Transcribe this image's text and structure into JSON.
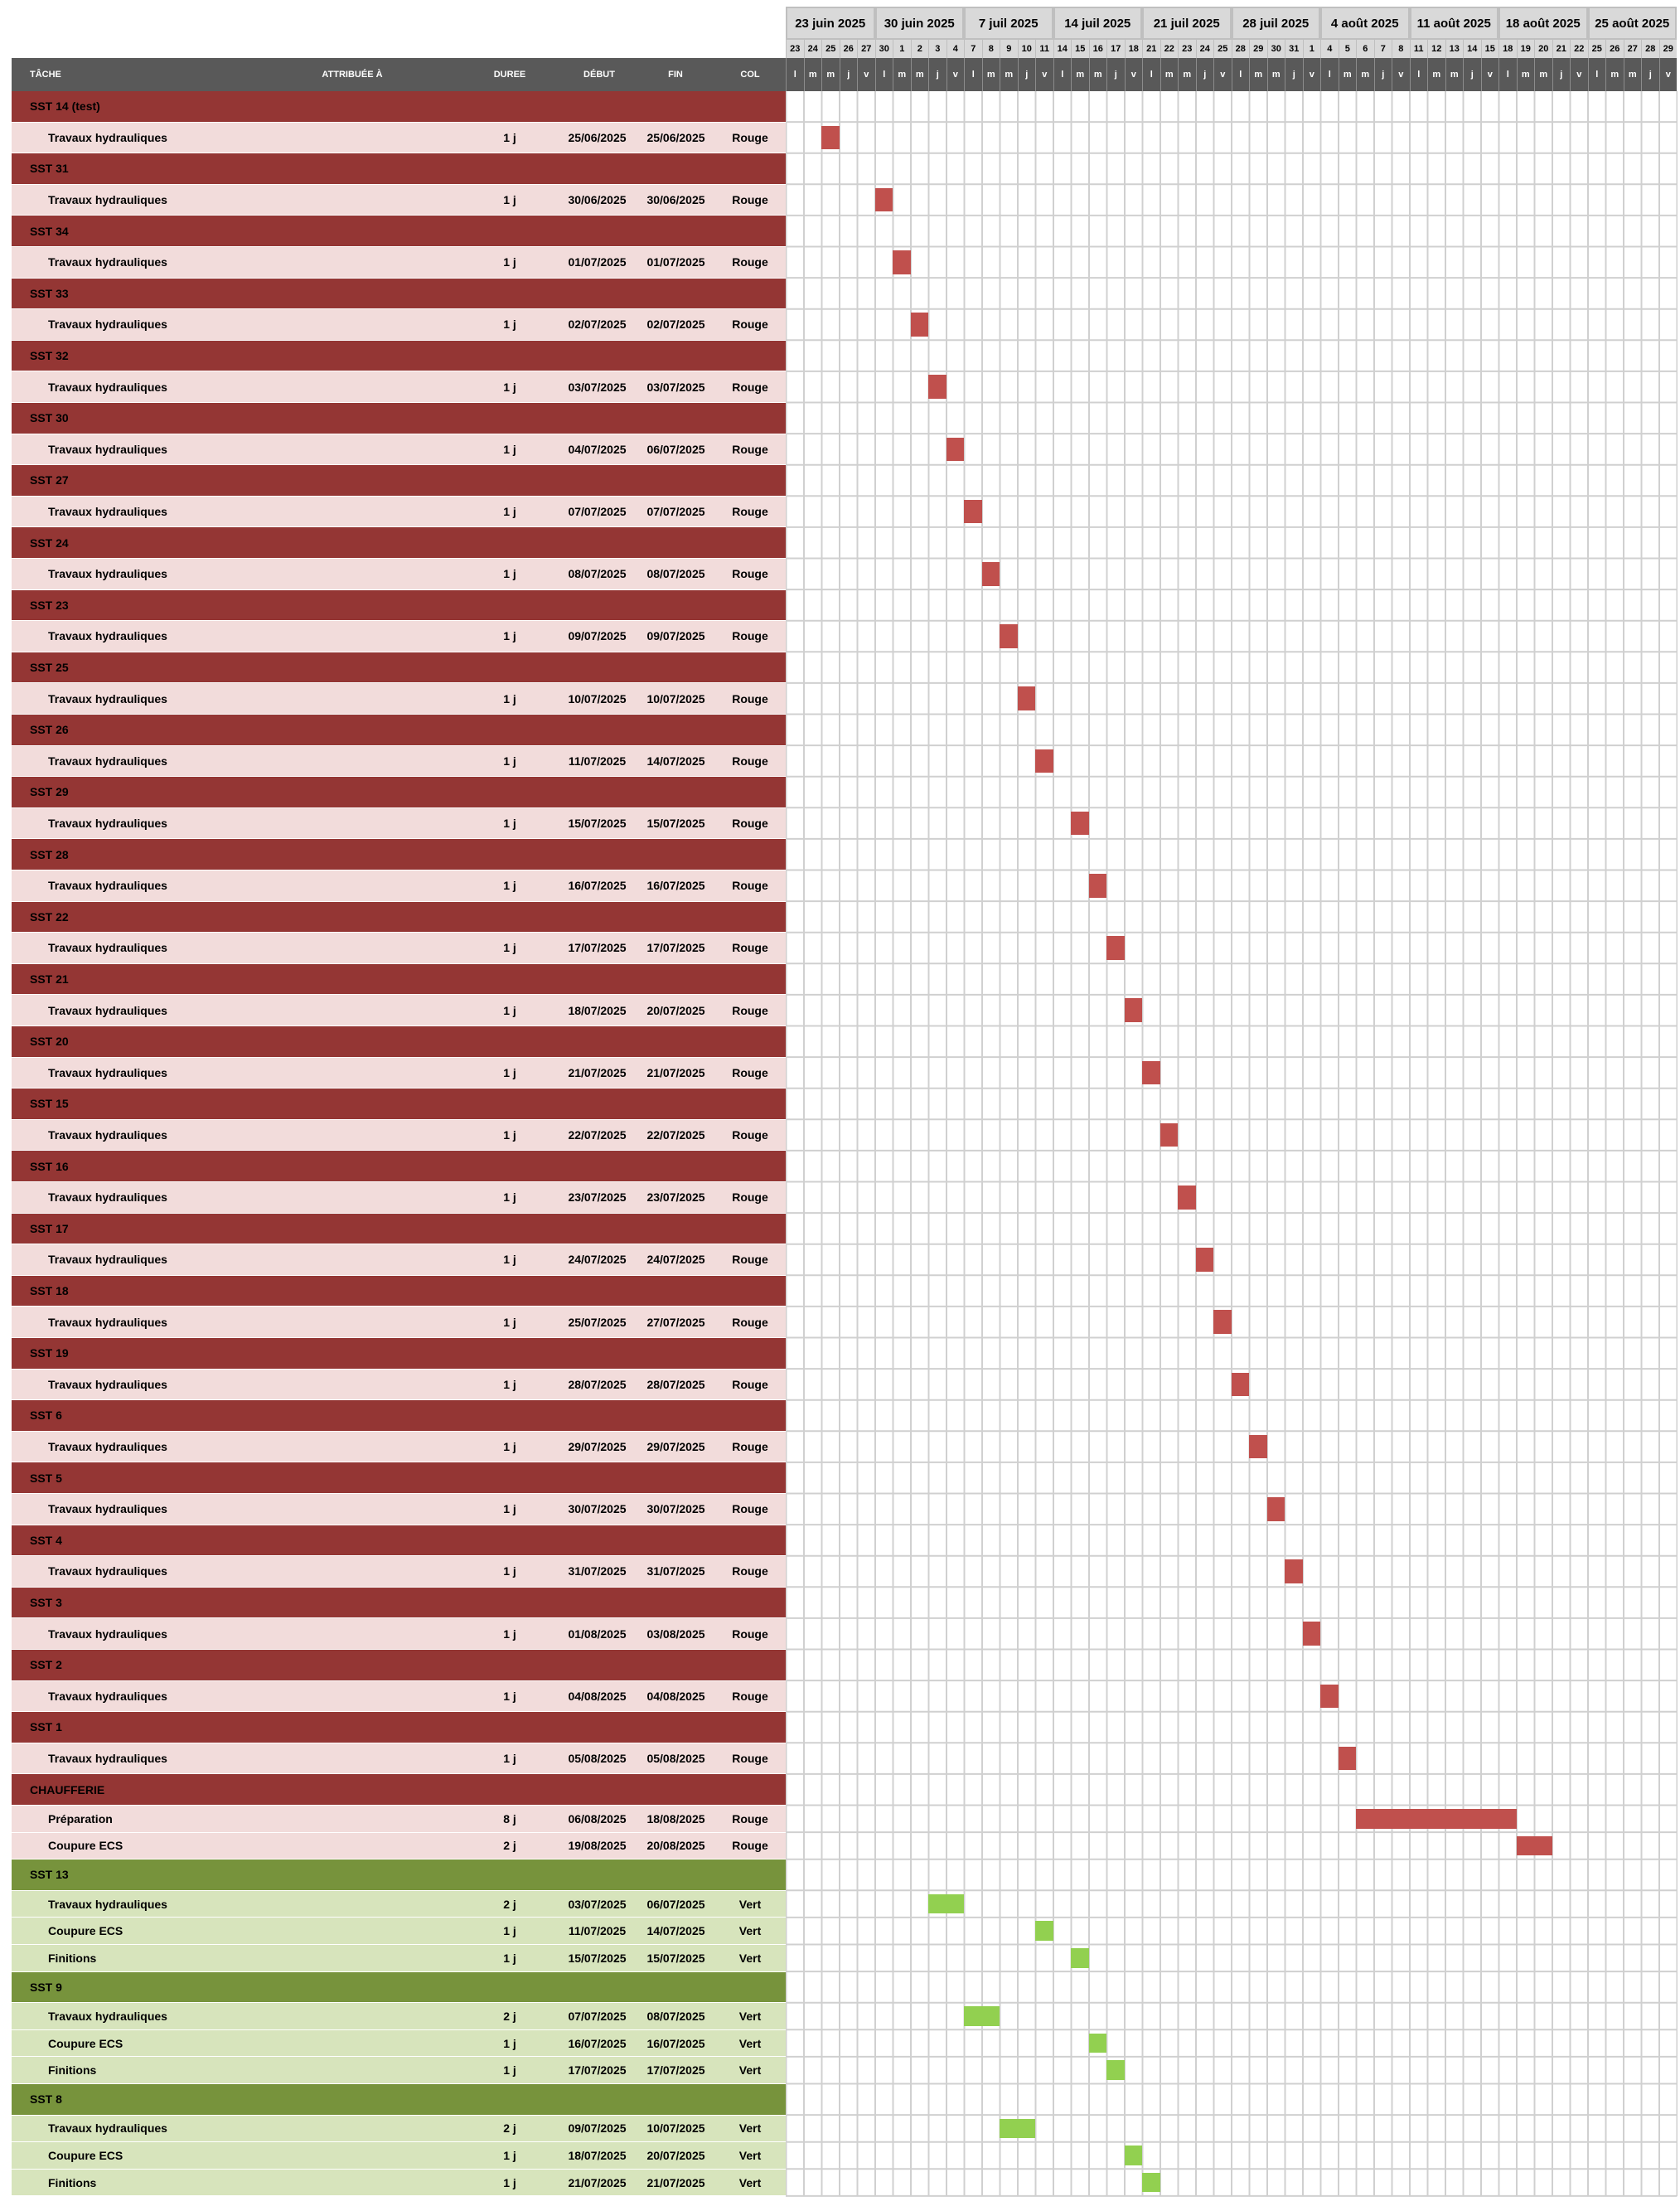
{
  "colors": {
    "group_red": "#943634",
    "group_green": "#77933c",
    "task_red": "#f2dcdb",
    "task_green": "#d7e4bc",
    "bar_red": "#c0504d",
    "bar_green": "#92d050",
    "header_dark": "#595959",
    "header_light": "#d9d9d9"
  },
  "headers": {
    "task": "TÂCHE",
    "assigned": "ATTRIBUÉE À",
    "duration": "DUREE",
    "start": "DÉBUT",
    "end": "FIN",
    "color": "COL"
  },
  "weeks": [
    "23 juin 2025",
    "30 juin 2025",
    "7 juil 2025",
    "14 juil 2025",
    "21 juil 2025",
    "28 juil 2025",
    "4 août 2025",
    "11 août 2025",
    "18 août 2025",
    "25 août 2025"
  ],
  "day_numbers": [
    "23",
    "24",
    "25",
    "26",
    "27",
    "30",
    "1",
    "2",
    "3",
    "4",
    "7",
    "8",
    "9",
    "10",
    "11",
    "14",
    "15",
    "16",
    "17",
    "18",
    "21",
    "22",
    "23",
    "24",
    "25",
    "28",
    "29",
    "30",
    "31",
    "1",
    "4",
    "5",
    "6",
    "7",
    "8",
    "11",
    "12",
    "13",
    "14",
    "15",
    "18",
    "19",
    "20",
    "21",
    "22",
    "25",
    "26",
    "27",
    "28",
    "29"
  ],
  "day_letters": [
    "l",
    "m",
    "m",
    "j",
    "v",
    "l",
    "m",
    "m",
    "j",
    "v",
    "l",
    "m",
    "m",
    "j",
    "v",
    "l",
    "m",
    "m",
    "j",
    "v",
    "l",
    "m",
    "m",
    "j",
    "v",
    "l",
    "m",
    "m",
    "j",
    "v",
    "l",
    "m",
    "m",
    "j",
    "v",
    "l",
    "m",
    "m",
    "j",
    "v",
    "l",
    "m",
    "m",
    "j",
    "v",
    "l",
    "m",
    "m",
    "j",
    "v"
  ],
  "rows": [
    {
      "kind": "group",
      "color": "red",
      "name": "SST 14 (test)"
    },
    {
      "kind": "task",
      "color": "red",
      "name": "Travaux hydrauliques",
      "duration": "1 j",
      "start": "25/06/2025",
      "end": "25/06/2025",
      "col": "Rouge",
      "bar_start": 2,
      "bar_len": 1
    },
    {
      "kind": "group",
      "color": "red",
      "name": "SST 31"
    },
    {
      "kind": "task",
      "color": "red",
      "name": "Travaux hydrauliques",
      "duration": "1 j",
      "start": "30/06/2025",
      "end": "30/06/2025",
      "col": "Rouge",
      "bar_start": 5,
      "bar_len": 1
    },
    {
      "kind": "group",
      "color": "red",
      "name": "SST 34"
    },
    {
      "kind": "task",
      "color": "red",
      "name": "Travaux hydrauliques",
      "duration": "1 j",
      "start": "01/07/2025",
      "end": "01/07/2025",
      "col": "Rouge",
      "bar_start": 6,
      "bar_len": 1
    },
    {
      "kind": "group",
      "color": "red",
      "name": "SST 33"
    },
    {
      "kind": "task",
      "color": "red",
      "name": "Travaux hydrauliques",
      "duration": "1 j",
      "start": "02/07/2025",
      "end": "02/07/2025",
      "col": "Rouge",
      "bar_start": 7,
      "bar_len": 1
    },
    {
      "kind": "group",
      "color": "red",
      "name": "SST 32"
    },
    {
      "kind": "task",
      "color": "red",
      "name": "Travaux hydrauliques",
      "duration": "1 j",
      "start": "03/07/2025",
      "end": "03/07/2025",
      "col": "Rouge",
      "bar_start": 8,
      "bar_len": 1
    },
    {
      "kind": "group",
      "color": "red",
      "name": "SST 30"
    },
    {
      "kind": "task",
      "color": "red",
      "name": "Travaux hydrauliques",
      "duration": "1 j",
      "start": "04/07/2025",
      "end": "06/07/2025",
      "col": "Rouge",
      "bar_start": 9,
      "bar_len": 1
    },
    {
      "kind": "group",
      "color": "red",
      "name": "SST 27"
    },
    {
      "kind": "task",
      "color": "red",
      "name": "Travaux hydrauliques",
      "duration": "1 j",
      "start": "07/07/2025",
      "end": "07/07/2025",
      "col": "Rouge",
      "bar_start": 10,
      "bar_len": 1
    },
    {
      "kind": "group",
      "color": "red",
      "name": "SST 24"
    },
    {
      "kind": "task",
      "color": "red",
      "name": "Travaux hydrauliques",
      "duration": "1 j",
      "start": "08/07/2025",
      "end": "08/07/2025",
      "col": "Rouge",
      "bar_start": 11,
      "bar_len": 1
    },
    {
      "kind": "group",
      "color": "red",
      "name": "SST 23"
    },
    {
      "kind": "task",
      "color": "red",
      "name": "Travaux hydrauliques",
      "duration": "1 j",
      "start": "09/07/2025",
      "end": "09/07/2025",
      "col": "Rouge",
      "bar_start": 12,
      "bar_len": 1
    },
    {
      "kind": "group",
      "color": "red",
      "name": "SST 25"
    },
    {
      "kind": "task",
      "color": "red",
      "name": "Travaux hydrauliques",
      "duration": "1 j",
      "start": "10/07/2025",
      "end": "10/07/2025",
      "col": "Rouge",
      "bar_start": 13,
      "bar_len": 1
    },
    {
      "kind": "group",
      "color": "red",
      "name": "SST 26"
    },
    {
      "kind": "task",
      "color": "red",
      "name": "Travaux hydrauliques",
      "duration": "1 j",
      "start": "11/07/2025",
      "end": "14/07/2025",
      "col": "Rouge",
      "bar_start": 14,
      "bar_len": 1
    },
    {
      "kind": "group",
      "color": "red",
      "name": "SST 29"
    },
    {
      "kind": "task",
      "color": "red",
      "name": "Travaux hydrauliques",
      "duration": "1 j",
      "start": "15/07/2025",
      "end": "15/07/2025",
      "col": "Rouge",
      "bar_start": 16,
      "bar_len": 1
    },
    {
      "kind": "group",
      "color": "red",
      "name": "SST 28"
    },
    {
      "kind": "task",
      "color": "red",
      "name": "Travaux hydrauliques",
      "duration": "1 j",
      "start": "16/07/2025",
      "end": "16/07/2025",
      "col": "Rouge",
      "bar_start": 17,
      "bar_len": 1
    },
    {
      "kind": "group",
      "color": "red",
      "name": "SST 22"
    },
    {
      "kind": "task",
      "color": "red",
      "name": "Travaux hydrauliques",
      "duration": "1 j",
      "start": "17/07/2025",
      "end": "17/07/2025",
      "col": "Rouge",
      "bar_start": 18,
      "bar_len": 1
    },
    {
      "kind": "group",
      "color": "red",
      "name": "SST 21"
    },
    {
      "kind": "task",
      "color": "red",
      "name": "Travaux hydrauliques",
      "duration": "1 j",
      "start": "18/07/2025",
      "end": "20/07/2025",
      "col": "Rouge",
      "bar_start": 19,
      "bar_len": 1
    },
    {
      "kind": "group",
      "color": "red",
      "name": "SST 20"
    },
    {
      "kind": "task",
      "color": "red",
      "name": "Travaux hydrauliques",
      "duration": "1 j",
      "start": "21/07/2025",
      "end": "21/07/2025",
      "col": "Rouge",
      "bar_start": 20,
      "bar_len": 1
    },
    {
      "kind": "group",
      "color": "red",
      "name": "SST 15"
    },
    {
      "kind": "task",
      "color": "red",
      "name": "Travaux hydrauliques",
      "duration": "1 j",
      "start": "22/07/2025",
      "end": "22/07/2025",
      "col": "Rouge",
      "bar_start": 21,
      "bar_len": 1
    },
    {
      "kind": "group",
      "color": "red",
      "name": "SST 16"
    },
    {
      "kind": "task",
      "color": "red",
      "name": "Travaux hydrauliques",
      "duration": "1 j",
      "start": "23/07/2025",
      "end": "23/07/2025",
      "col": "Rouge",
      "bar_start": 22,
      "bar_len": 1
    },
    {
      "kind": "group",
      "color": "red",
      "name": "SST 17"
    },
    {
      "kind": "task",
      "color": "red",
      "name": "Travaux hydrauliques",
      "duration": "1 j",
      "start": "24/07/2025",
      "end": "24/07/2025",
      "col": "Rouge",
      "bar_start": 23,
      "bar_len": 1
    },
    {
      "kind": "group",
      "color": "red",
      "name": "SST 18"
    },
    {
      "kind": "task",
      "color": "red",
      "name": "Travaux hydrauliques",
      "duration": "1 j",
      "start": "25/07/2025",
      "end": "27/07/2025",
      "col": "Rouge",
      "bar_start": 24,
      "bar_len": 1
    },
    {
      "kind": "group",
      "color": "red",
      "name": "SST 19"
    },
    {
      "kind": "task",
      "color": "red",
      "name": "Travaux hydrauliques",
      "duration": "1 j",
      "start": "28/07/2025",
      "end": "28/07/2025",
      "col": "Rouge",
      "bar_start": 25,
      "bar_len": 1
    },
    {
      "kind": "group",
      "color": "red",
      "name": "SST 6"
    },
    {
      "kind": "task",
      "color": "red",
      "name": "Travaux hydrauliques",
      "duration": "1 j",
      "start": "29/07/2025",
      "end": "29/07/2025",
      "col": "Rouge",
      "bar_start": 26,
      "bar_len": 1
    },
    {
      "kind": "group",
      "color": "red",
      "name": "SST 5"
    },
    {
      "kind": "task",
      "color": "red",
      "name": "Travaux hydrauliques",
      "duration": "1 j",
      "start": "30/07/2025",
      "end": "30/07/2025",
      "col": "Rouge",
      "bar_start": 27,
      "bar_len": 1
    },
    {
      "kind": "group",
      "color": "red",
      "name": "SST 4"
    },
    {
      "kind": "task",
      "color": "red",
      "name": "Travaux hydrauliques",
      "duration": "1 j",
      "start": "31/07/2025",
      "end": "31/07/2025",
      "col": "Rouge",
      "bar_start": 28,
      "bar_len": 1
    },
    {
      "kind": "group",
      "color": "red",
      "name": "SST 3"
    },
    {
      "kind": "task",
      "color": "red",
      "name": "Travaux hydrauliques",
      "duration": "1 j",
      "start": "01/08/2025",
      "end": "03/08/2025",
      "col": "Rouge",
      "bar_start": 29,
      "bar_len": 1
    },
    {
      "kind": "group",
      "color": "red",
      "name": "SST 2"
    },
    {
      "kind": "task",
      "color": "red",
      "name": "Travaux hydrauliques",
      "duration": "1 j",
      "start": "04/08/2025",
      "end": "04/08/2025",
      "col": "Rouge",
      "bar_start": 30,
      "bar_len": 1
    },
    {
      "kind": "group",
      "color": "red",
      "name": "SST 1"
    },
    {
      "kind": "task",
      "color": "red",
      "name": "Travaux hydrauliques",
      "duration": "1 j",
      "start": "05/08/2025",
      "end": "05/08/2025",
      "col": "Rouge",
      "bar_start": 31,
      "bar_len": 1
    },
    {
      "kind": "group",
      "color": "red",
      "name": "CHAUFFERIE"
    },
    {
      "kind": "task",
      "color": "red",
      "compact": true,
      "name": "Préparation",
      "duration": "8 j",
      "start": "06/08/2025",
      "end": "18/08/2025",
      "col": "Rouge",
      "bar_start": 32,
      "bar_len": 9
    },
    {
      "kind": "task",
      "color": "red",
      "compact": true,
      "name": "Coupure ECS",
      "duration": "2 j",
      "start": "19/08/2025",
      "end": "20/08/2025",
      "col": "Rouge",
      "bar_start": 41,
      "bar_len": 2
    },
    {
      "kind": "group",
      "color": "green",
      "name": "SST 13"
    },
    {
      "kind": "task",
      "color": "green",
      "compact": true,
      "name": "Travaux hydrauliques",
      "duration": "2 j",
      "start": "03/07/2025",
      "end": "06/07/2025",
      "col": "Vert",
      "bar_start": 8,
      "bar_len": 2
    },
    {
      "kind": "task",
      "color": "green",
      "compact": true,
      "name": "Coupure ECS",
      "duration": "1 j",
      "start": "11/07/2025",
      "end": "14/07/2025",
      "col": "Vert",
      "bar_start": 14,
      "bar_len": 1
    },
    {
      "kind": "task",
      "color": "green",
      "compact": true,
      "name": "Finitions",
      "duration": "1 j",
      "start": "15/07/2025",
      "end": "15/07/2025",
      "col": "Vert",
      "bar_start": 16,
      "bar_len": 1
    },
    {
      "kind": "group",
      "color": "green",
      "name": "SST 9"
    },
    {
      "kind": "task",
      "color": "green",
      "compact": true,
      "name": "Travaux hydrauliques",
      "duration": "2 j",
      "start": "07/07/2025",
      "end": "08/07/2025",
      "col": "Vert",
      "bar_start": 10,
      "bar_len": 2
    },
    {
      "kind": "task",
      "color": "green",
      "compact": true,
      "name": "Coupure ECS",
      "duration": "1 j",
      "start": "16/07/2025",
      "end": "16/07/2025",
      "col": "Vert",
      "bar_start": 17,
      "bar_len": 1
    },
    {
      "kind": "task",
      "color": "green",
      "compact": true,
      "name": "Finitions",
      "duration": "1 j",
      "start": "17/07/2025",
      "end": "17/07/2025",
      "col": "Vert",
      "bar_start": 18,
      "bar_len": 1
    },
    {
      "kind": "group",
      "color": "green",
      "name": "SST 8"
    },
    {
      "kind": "task",
      "color": "green",
      "compact": true,
      "name": "Travaux hydrauliques",
      "duration": "2 j",
      "start": "09/07/2025",
      "end": "10/07/2025",
      "col": "Vert",
      "bar_start": 12,
      "bar_len": 2
    },
    {
      "kind": "task",
      "color": "green",
      "compact": true,
      "name": "Coupure ECS",
      "duration": "1 j",
      "start": "18/07/2025",
      "end": "20/07/2025",
      "col": "Vert",
      "bar_start": 19,
      "bar_len": 1
    },
    {
      "kind": "task",
      "color": "green",
      "compact": true,
      "name": "Finitions",
      "duration": "1 j",
      "start": "21/07/2025",
      "end": "21/07/2025",
      "col": "Vert",
      "bar_start": 20,
      "bar_len": 1
    }
  ]
}
